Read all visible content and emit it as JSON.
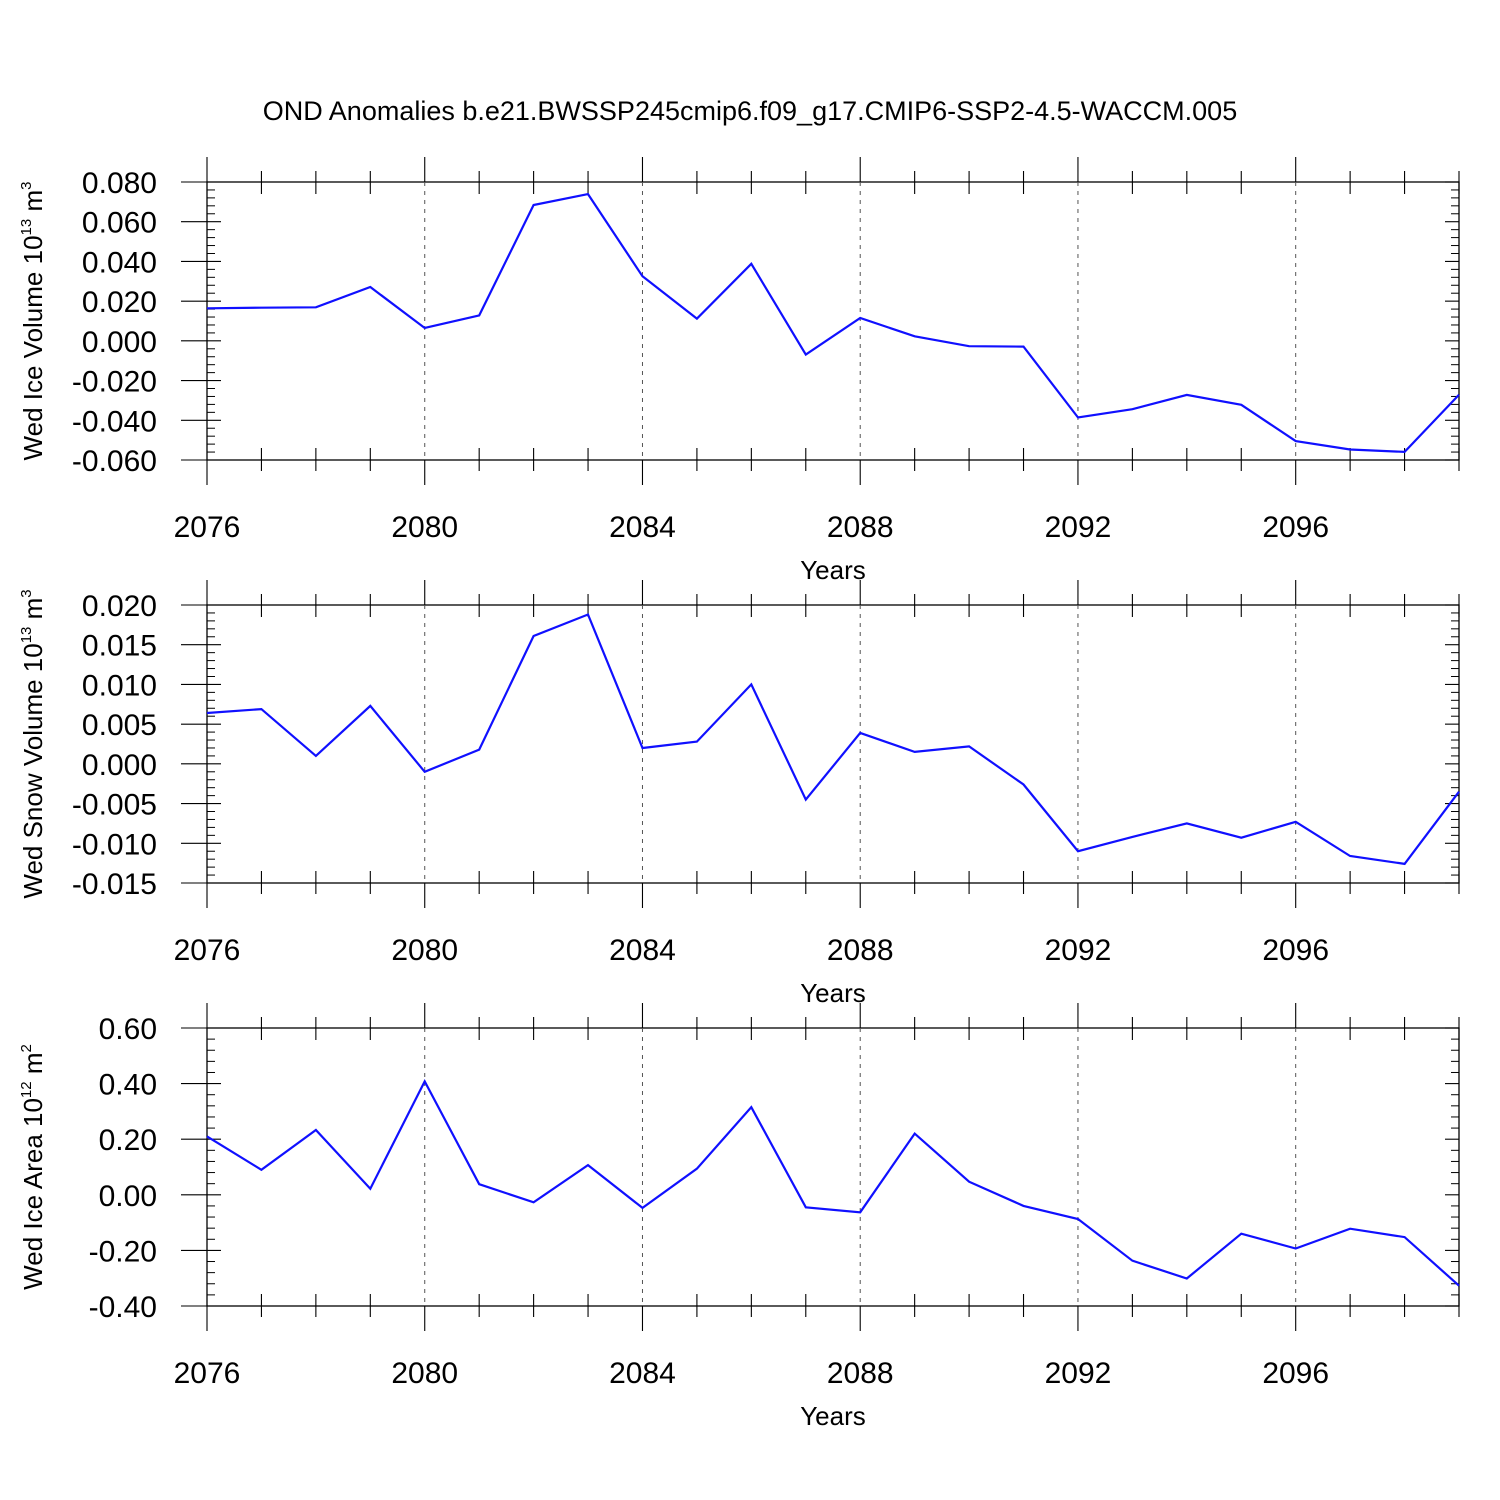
{
  "title": "OND Anomalies b.e21.BWSSP245cmip6.f09_g17.CMIP6-SSP2-4.5-WACCM.005",
  "chart_data": [
    {
      "type": "line",
      "ylabel": {
        "text": "Wed Ice Volume 10",
        "exponent": "13",
        "unit": " m",
        "unit_exponent": "3"
      },
      "xlabel": "Years",
      "xlim": [
        2076,
        2099
      ],
      "ylim": [
        -0.06,
        0.08
      ],
      "xticks": [
        2076,
        2080,
        2084,
        2088,
        2092,
        2096
      ],
      "xtick_labels": [
        "2076",
        "2080",
        "2084",
        "2088",
        "2092",
        "2096"
      ],
      "yticks": [
        -0.06,
        -0.04,
        -0.02,
        0.0,
        0.02,
        0.04,
        0.06,
        0.08
      ],
      "ytick_labels": [
        "-0.060",
        "-0.040",
        "-0.020",
        "0.000",
        "0.020",
        "0.040",
        "0.060",
        "0.080"
      ],
      "grid": "vertical dashed at labeled years",
      "line_color": "#1010ff",
      "x": [
        2076,
        2077,
        2078,
        2079,
        2080,
        2081,
        2082,
        2083,
        2084,
        2085,
        2086,
        2087,
        2088,
        2089,
        2090,
        2091,
        2092,
        2093,
        2094,
        2095,
        2096,
        2097,
        2098,
        2099
      ],
      "y": [
        0.0164,
        0.0167,
        0.0169,
        0.0271,
        0.0065,
        0.0128,
        0.0684,
        0.0739,
        0.0325,
        0.0112,
        0.0388,
        -0.0069,
        0.0115,
        0.0023,
        -0.0027,
        -0.0029,
        -0.0386,
        -0.0344,
        -0.0272,
        -0.0322,
        -0.0505,
        -0.0547,
        -0.0559,
        -0.0271
      ]
    },
    {
      "type": "line",
      "ylabel": {
        "text": "Wed Snow Volume 10",
        "exponent": "13",
        "unit": " m",
        "unit_exponent": "3"
      },
      "xlabel": "Years",
      "xlim": [
        2076,
        2099
      ],
      "ylim": [
        -0.015,
        0.02
      ],
      "xticks": [
        2076,
        2080,
        2084,
        2088,
        2092,
        2096
      ],
      "xtick_labels": [
        "2076",
        "2080",
        "2084",
        "2088",
        "2092",
        "2096"
      ],
      "yticks": [
        -0.015,
        -0.01,
        -0.005,
        0.0,
        0.005,
        0.01,
        0.015,
        0.02
      ],
      "ytick_labels": [
        "-0.015",
        "-0.010",
        "-0.005",
        "0.000",
        "0.005",
        "0.010",
        "0.015",
        "0.020"
      ],
      "grid": "vertical dashed at labeled years",
      "line_color": "#1010ff",
      "x": [
        2076,
        2077,
        2078,
        2079,
        2080,
        2081,
        2082,
        2083,
        2084,
        2085,
        2086,
        2087,
        2088,
        2089,
        2090,
        2091,
        2092,
        2093,
        2094,
        2095,
        2096,
        2097,
        2098,
        2099
      ],
      "y": [
        0.0064,
        0.0069,
        0.001,
        0.0073,
        -0.001,
        0.0018,
        0.0161,
        0.0188,
        0.002,
        0.0028,
        0.01,
        -0.0045,
        0.0039,
        0.0015,
        0.0022,
        -0.0026,
        -0.011,
        -0.0092,
        -0.0075,
        -0.0093,
        -0.0073,
        -0.0116,
        -0.0126,
        -0.0035
      ]
    },
    {
      "type": "line",
      "ylabel": {
        "text": "Wed Ice Area 10",
        "exponent": "12",
        "unit": " m",
        "unit_exponent": "2"
      },
      "xlabel": "Years",
      "xlim": [
        2076,
        2099
      ],
      "ylim": [
        -0.4,
        0.6
      ],
      "xticks": [
        2076,
        2080,
        2084,
        2088,
        2092,
        2096
      ],
      "xtick_labels": [
        "2076",
        "2080",
        "2084",
        "2088",
        "2092",
        "2096"
      ],
      "yticks": [
        -0.4,
        -0.2,
        0.0,
        0.2,
        0.4,
        0.6
      ],
      "ytick_labels": [
        "-0.40",
        "-0.20",
        "0.00",
        "0.20",
        "0.40",
        "0.60"
      ],
      "grid": "vertical dashed at labeled years",
      "line_color": "#1010ff",
      "x": [
        2076,
        2077,
        2078,
        2079,
        2080,
        2081,
        2082,
        2083,
        2084,
        2085,
        2086,
        2087,
        2088,
        2089,
        2090,
        2091,
        2092,
        2093,
        2094,
        2095,
        2096,
        2097,
        2098,
        2099
      ],
      "y": [
        0.21,
        0.09,
        0.233,
        0.022,
        0.408,
        0.038,
        -0.027,
        0.107,
        -0.047,
        0.094,
        0.315,
        -0.045,
        -0.063,
        0.22,
        0.047,
        -0.04,
        -0.087,
        -0.237,
        -0.301,
        -0.14,
        -0.193,
        -0.122,
        -0.152,
        -0.327
      ]
    }
  ]
}
